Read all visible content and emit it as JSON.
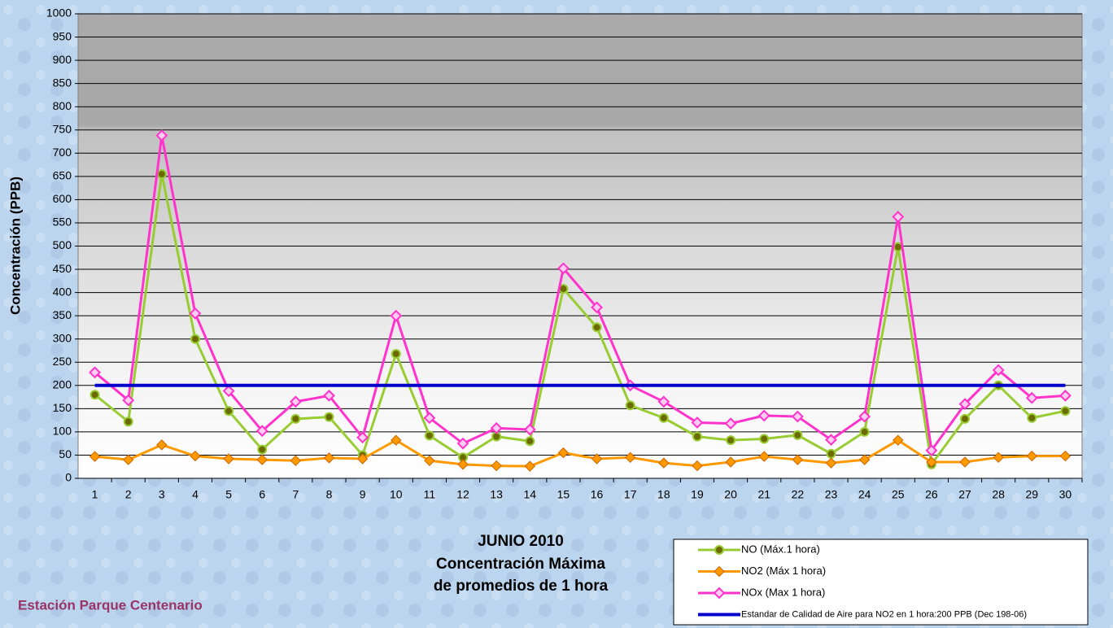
{
  "chart_data": {
    "type": "line",
    "title": "JUNIO 2010",
    "subtitle": [
      "Concentración Máxima",
      "de promedios de 1 hora"
    ],
    "annotation": "Estación Parque Centenario",
    "y_label": "Concentración  (PPB)",
    "categories": [
      "1",
      "2",
      "3",
      "4",
      "5",
      "6",
      "7",
      "8",
      "9",
      "10",
      "11",
      "12",
      "13",
      "14",
      "15",
      "16",
      "17",
      "18",
      "19",
      "20",
      "21",
      "22",
      "23",
      "24",
      "25",
      "26",
      "27",
      "28",
      "29",
      "30"
    ],
    "series": [
      {
        "name": "NO (Máx.1 hora)",
        "color": "#99cc33",
        "marker": "circle",
        "values": [
          180,
          122,
          655,
          300,
          145,
          62,
          128,
          132,
          50,
          268,
          92,
          45,
          90,
          80,
          408,
          325,
          157,
          130,
          90,
          82,
          85,
          93,
          53,
          100,
          498,
          30,
          128,
          200,
          130,
          145
        ]
      },
      {
        "name": "NO2 (Máx 1 hora)",
        "color": "#ff9900",
        "marker": "diamond",
        "values": [
          47,
          40,
          72,
          48,
          42,
          40,
          38,
          44,
          42,
          82,
          38,
          30,
          27,
          26,
          55,
          42,
          45,
          33,
          27,
          35,
          47,
          40,
          33,
          40,
          82,
          35,
          35,
          45,
          48,
          48
        ]
      },
      {
        "name": "NOx (Max 1 hora)",
        "color": "#ff33cc",
        "marker": "diamond-open",
        "values": [
          228,
          168,
          738,
          355,
          188,
          102,
          165,
          178,
          88,
          350,
          130,
          75,
          108,
          105,
          452,
          368,
          200,
          165,
          120,
          118,
          135,
          133,
          83,
          133,
          563,
          60,
          160,
          233,
          173,
          178
        ]
      },
      {
        "name": "Estandar de Calidad de Aire para NO2 en 1 hora:200 PPB (Dec 198-06)",
        "color": "#0000cc",
        "marker": "none",
        "values": [
          200,
          200,
          200,
          200,
          200,
          200,
          200,
          200,
          200,
          200,
          200,
          200,
          200,
          200,
          200,
          200,
          200,
          200,
          200,
          200,
          200,
          200,
          200,
          200,
          200,
          200,
          200,
          200,
          200,
          200
        ]
      }
    ],
    "ylim": [
      0,
      1000
    ],
    "yticks": [
      0,
      50,
      100,
      150,
      200,
      250,
      300,
      350,
      400,
      450,
      500,
      550,
      600,
      650,
      700,
      750,
      800,
      850,
      900,
      950,
      1000
    ],
    "grid": true
  }
}
